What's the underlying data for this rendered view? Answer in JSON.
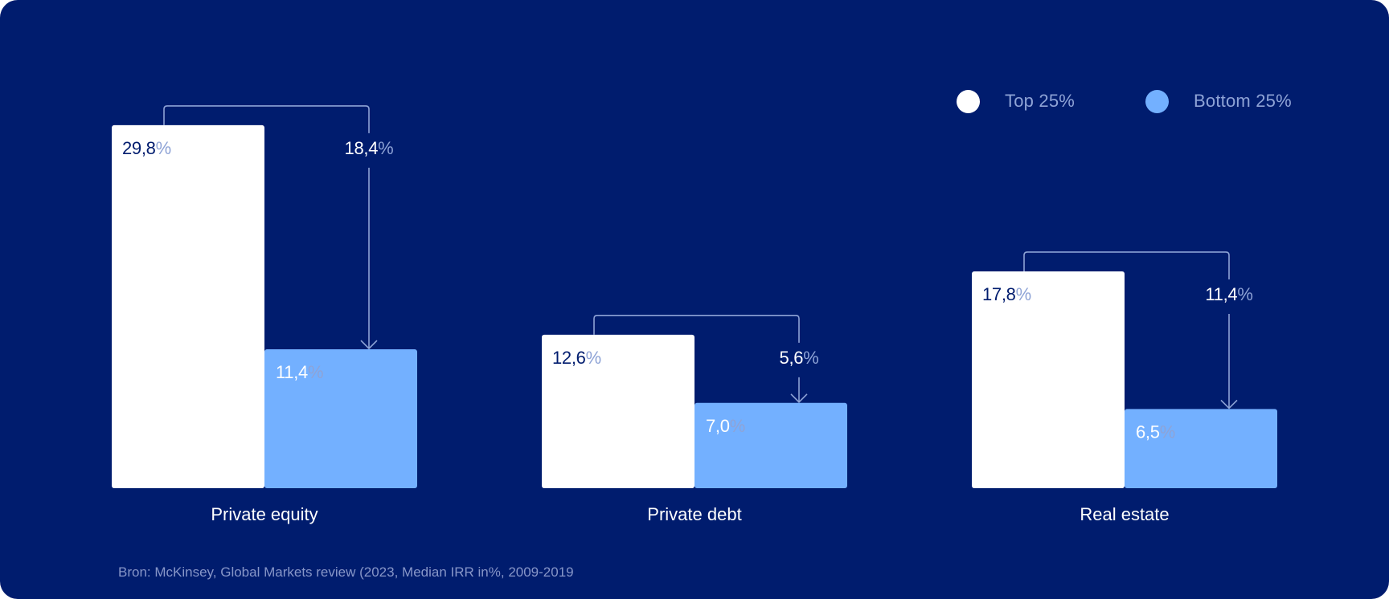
{
  "legend": {
    "top_label": "Top 25%",
    "bottom_label": "Bottom 25%"
  },
  "source": "Bron: McKinsey, Global Markets review (2023, Median IRR in%, 2009-2019",
  "colors": {
    "background": "#001C6E",
    "top": "#FFFFFF",
    "bottom": "#73B0FF",
    "label_dark": "#001C6E",
    "percent_muted": "#8EA3D6",
    "bracket": "#8EA3D6"
  },
  "chart_data": {
    "type": "bar",
    "categories": [
      "Private equity",
      "Private debt",
      "Real estate"
    ],
    "series": [
      {
        "name": "Top 25%",
        "values": [
          29.8,
          12.6,
          17.8
        ],
        "labels": [
          "29,8",
          "12,6",
          "17,8"
        ]
      },
      {
        "name": "Bottom 25%",
        "values": [
          11.4,
          7.0,
          6.5
        ],
        "labels": [
          "11,4",
          "7,0",
          "6,5"
        ]
      }
    ],
    "differences": [
      18.4,
      5.6,
      11.4
    ],
    "difference_labels": [
      "18,4",
      "5,6",
      "11,4"
    ],
    "percent_sign": "%",
    "legend_position": "top-right",
    "grid": false
  }
}
